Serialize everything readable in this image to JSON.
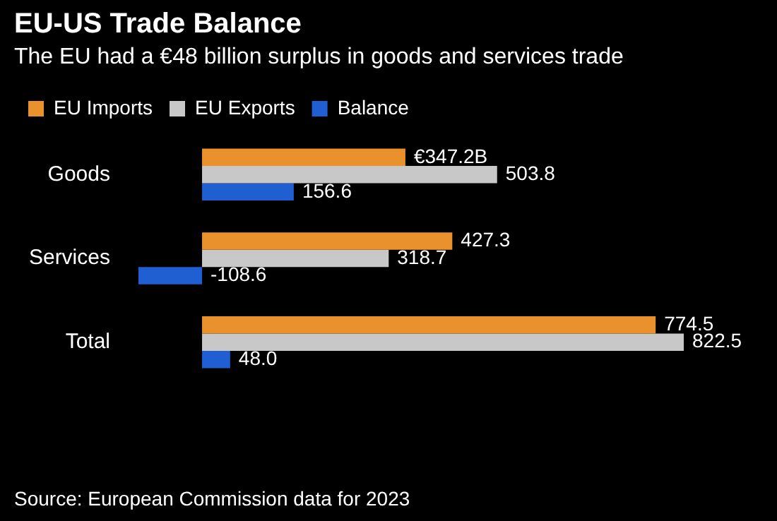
{
  "chart_data": {
    "type": "bar",
    "orientation": "horizontal",
    "title": "EU-US Trade Balance",
    "subtitle": "The EU had a €48 billion surplus in goods and services trade",
    "categories": [
      "Goods",
      "Services",
      "Total"
    ],
    "series": [
      {
        "name": "EU Imports",
        "color": "#e8912d",
        "values": [
          347.2,
          427.3,
          774.5
        ],
        "value_labels": [
          "€347.2B",
          "427.3",
          "774.5"
        ]
      },
      {
        "name": "EU Exports",
        "color": "#c8c8c8",
        "values": [
          503.8,
          318.7,
          822.5
        ],
        "value_labels": [
          "503.8",
          "318.7",
          "822.5"
        ]
      },
      {
        "name": "Balance",
        "color": "#1f5fd1",
        "values": [
          156.6,
          -108.6,
          48.0
        ],
        "value_labels": [
          "156.6",
          "-108.6",
          "48.0"
        ]
      }
    ],
    "legend": "top left",
    "annotations": [
      "Source: European Commission data for 2023"
    ]
  }
}
